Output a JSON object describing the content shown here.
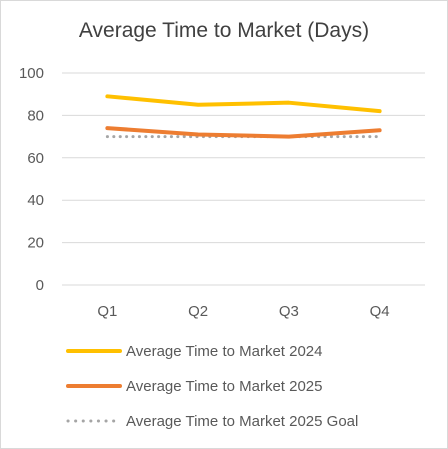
{
  "chart_data": {
    "type": "line",
    "title": "Average Time to Market (Days)",
    "categories": [
      "Q1",
      "Q2",
      "Q3",
      "Q4"
    ],
    "ylim": [
      0,
      100
    ],
    "yticks": [
      0,
      20,
      40,
      60,
      80,
      100
    ],
    "grid": true,
    "legend_position": "bottom",
    "series": [
      {
        "name": "Average Time to Market 2024",
        "values": [
          89,
          85,
          86,
          82
        ],
        "color": "#FFC000",
        "style": "solid"
      },
      {
        "name": "Average Time to Market 2025",
        "values": [
          74,
          71,
          70,
          73
        ],
        "color": "#ED7D31",
        "style": "solid"
      },
      {
        "name": "Average Time to Market 2025 Goal",
        "values": [
          70,
          70,
          70,
          70
        ],
        "color": "#A5A5A5",
        "style": "dotted"
      }
    ]
  }
}
